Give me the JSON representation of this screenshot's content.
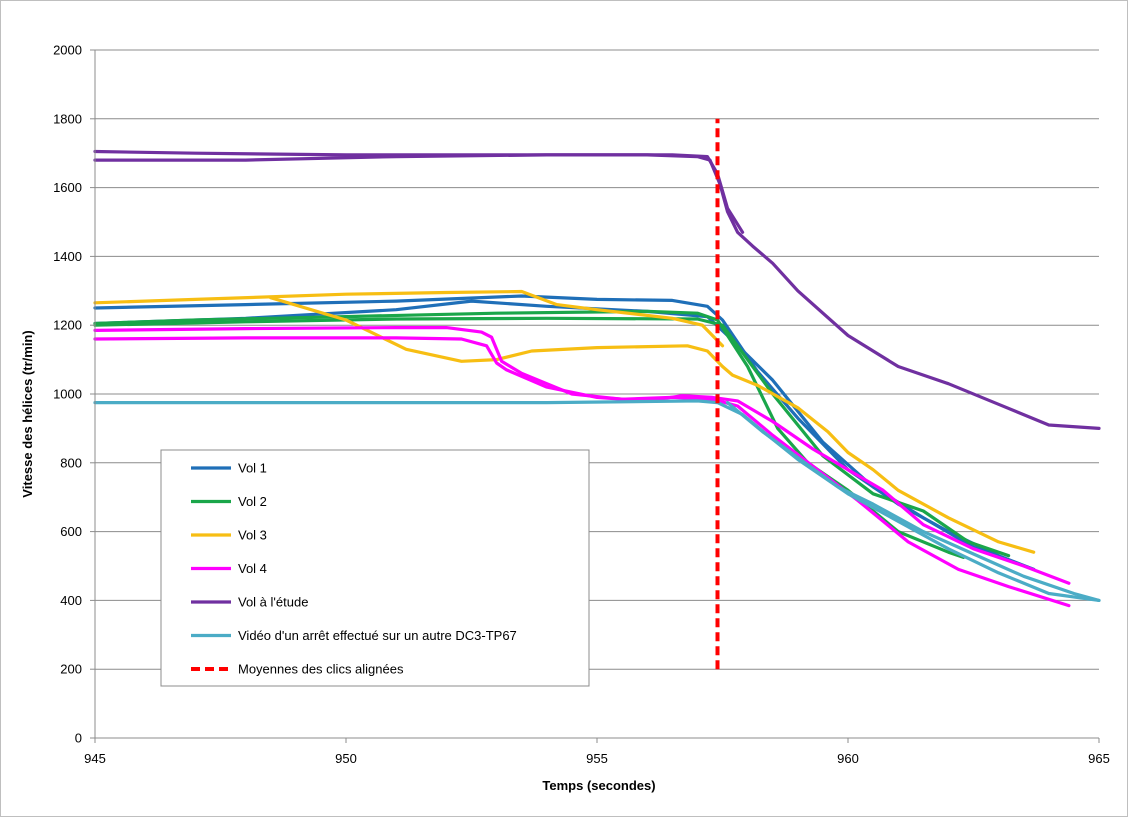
{
  "chart_data": {
    "type": "line",
    "title": "",
    "xlabel": "Temps (secondes)",
    "ylabel": "Vitesse des hélices (tr/min)",
    "xlim": [
      945,
      965
    ],
    "ylim": [
      0,
      2000
    ],
    "xticks": [
      "945",
      "950",
      "955",
      "960",
      "965"
    ],
    "yticks": [
      "0",
      "200",
      "400",
      "600",
      "800",
      "1000",
      "1200",
      "1400",
      "1600",
      "1800",
      "2000"
    ],
    "grid": "horizontal",
    "legend_position": "bottom-left",
    "series": [
      {
        "name": "Vol 1",
        "color": "#1f6fb8",
        "lines": [
          [
            [
              945,
              1250
            ],
            [
              948,
              1260
            ],
            [
              951,
              1270
            ],
            [
              953.5,
              1285
            ],
            [
              955,
              1275
            ],
            [
              956.5,
              1272
            ],
            [
              957.2,
              1255
            ],
            [
              957.5,
              1215
            ],
            [
              958.2,
              1065
            ],
            [
              959,
              930
            ],
            [
              960,
              780
            ],
            [
              961,
              680
            ],
            [
              962,
              600
            ],
            [
              963,
              530
            ],
            [
              963.7,
              490
            ]
          ],
          [
            [
              945,
              1205
            ],
            [
              948,
              1220
            ],
            [
              951,
              1245
            ],
            [
              952.5,
              1270
            ],
            [
              954,
              1255
            ],
            [
              956,
              1240
            ],
            [
              957.2,
              1225
            ],
            [
              957.6,
              1170
            ],
            [
              958.5,
              1040
            ],
            [
              959.5,
              860
            ],
            [
              960.5,
              730
            ],
            [
              961.5,
              640
            ],
            [
              962.5,
              555
            ],
            [
              963.7,
              490
            ]
          ]
        ]
      },
      {
        "name": "Vol 2",
        "color": "#1aa64a",
        "lines": [
          [
            [
              945,
              1205
            ],
            [
              947,
              1215
            ],
            [
              950,
              1225
            ],
            [
              953,
              1235
            ],
            [
              956,
              1240
            ],
            [
              957,
              1235
            ],
            [
              957.4,
              1215
            ],
            [
              958,
              1080
            ],
            [
              958.6,
              900
            ],
            [
              959.2,
              800
            ],
            [
              960,
              720
            ],
            [
              961,
              600
            ],
            [
              962,
              540
            ],
            [
              962.3,
              525
            ]
          ],
          [
            [
              945,
              1200
            ],
            [
              948,
              1210
            ],
            [
              951,
              1218
            ],
            [
              954,
              1220
            ],
            [
              957,
              1218
            ],
            [
              957.5,
              1200
            ],
            [
              958.5,
              1000
            ],
            [
              959.5,
              820
            ],
            [
              960.5,
              710
            ],
            [
              961.5,
              660
            ],
            [
              962.4,
              570
            ],
            [
              963.2,
              530
            ]
          ]
        ]
      },
      {
        "name": "Vol 3",
        "color": "#f7be13",
        "lines": [
          [
            [
              945,
              1265
            ],
            [
              947,
              1275
            ],
            [
              950,
              1290
            ],
            [
              952,
              1295
            ],
            [
              953.5,
              1298
            ],
            [
              954.2,
              1260
            ],
            [
              955,
              1245
            ],
            [
              956.5,
              1220
            ],
            [
              957.1,
              1200
            ],
            [
              957.5,
              1140
            ]
          ],
          [
            [
              948.5,
              1280
            ],
            [
              950,
              1215
            ],
            [
              951.2,
              1130
            ],
            [
              952.3,
              1095
            ],
            [
              953,
              1100
            ],
            [
              953.7,
              1125
            ],
            [
              955,
              1135
            ],
            [
              956.8,
              1140
            ],
            [
              957.2,
              1125
            ],
            [
              957.5,
              1080
            ],
            [
              957.7,
              1055
            ],
            [
              958.2,
              1025
            ],
            [
              959,
              960
            ],
            [
              959.6,
              890
            ],
            [
              960,
              830
            ],
            [
              960.5,
              780
            ],
            [
              961,
              720
            ],
            [
              962,
              640
            ],
            [
              963,
              570
            ],
            [
              963.7,
              540
            ]
          ]
        ]
      },
      {
        "name": "Vol 4",
        "color": "#ff00ff",
        "lines": [
          [
            [
              945,
              1160
            ],
            [
              948,
              1163
            ],
            [
              951,
              1163
            ],
            [
              952.3,
              1160
            ],
            [
              952.8,
              1140
            ],
            [
              953,
              1090
            ],
            [
              953.2,
              1070
            ],
            [
              954,
              1020
            ],
            [
              955,
              990
            ],
            [
              956,
              980
            ],
            [
              956.7,
              995
            ],
            [
              957.3,
              990
            ],
            [
              957.8,
              980
            ],
            [
              958.5,
              920
            ],
            [
              959.3,
              840
            ],
            [
              960,
              780
            ],
            [
              960.7,
              720
            ],
            [
              961.5,
              620
            ],
            [
              962.5,
              550
            ],
            [
              963.5,
              500
            ],
            [
              964.4,
              450
            ]
          ],
          [
            [
              945,
              1185
            ],
            [
              948,
              1190
            ],
            [
              951,
              1193
            ],
            [
              952,
              1193
            ],
            [
              952.7,
              1180
            ],
            [
              952.9,
              1165
            ],
            [
              953.1,
              1095
            ],
            [
              953.5,
              1060
            ],
            [
              954.5,
              1000
            ],
            [
              955.5,
              985
            ],
            [
              956.5,
              990
            ],
            [
              957.3,
              985
            ],
            [
              957.8,
              965
            ],
            [
              958.5,
              880
            ],
            [
              959.3,
              790
            ],
            [
              960.2,
              690
            ],
            [
              961.2,
              570
            ],
            [
              962.2,
              490
            ],
            [
              963.2,
              440
            ],
            [
              964.4,
              385
            ]
          ]
        ]
      },
      {
        "name": "Vol à l'étude",
        "color": "#7030a0",
        "lines": [
          [
            [
              945,
              1705
            ],
            [
              947,
              1700
            ],
            [
              950,
              1695
            ],
            [
              953,
              1695
            ],
            [
              956,
              1695
            ],
            [
              957,
              1690
            ],
            [
              957.25,
              1680
            ],
            [
              957.45,
              1610
            ],
            [
              957.6,
              1530
            ],
            [
              957.8,
              1470
            ],
            [
              958.1,
              1430
            ],
            [
              958.5,
              1380
            ],
            [
              959,
              1300
            ],
            [
              960,
              1170
            ],
            [
              961,
              1080
            ],
            [
              962,
              1030
            ],
            [
              963,
              970
            ],
            [
              964,
              910
            ],
            [
              965,
              900
            ]
          ],
          [
            [
              945,
              1680
            ],
            [
              948,
              1680
            ],
            [
              951,
              1690
            ],
            [
              954,
              1695
            ],
            [
              956.5,
              1695
            ],
            [
              957.2,
              1690
            ],
            [
              957.4,
              1640
            ],
            [
              957.6,
              1540
            ],
            [
              957.9,
              1470
            ]
          ]
        ]
      },
      {
        "name": "Vidéo d'un arrêt effectué sur un autre DC3-TP67",
        "color": "#4bacc6",
        "lines": [
          [
            [
              945,
              975
            ],
            [
              950,
              975
            ],
            [
              954,
              975
            ],
            [
              957,
              980
            ],
            [
              957.4,
              975
            ],
            [
              957.9,
              940
            ],
            [
              958.4,
              880
            ],
            [
              959,
              810
            ],
            [
              960,
              710
            ],
            [
              961,
              630
            ],
            [
              962,
              550
            ],
            [
              963,
              480
            ],
            [
              964,
              420
            ],
            [
              965,
              400
            ]
          ],
          [
            [
              957.6,
              975
            ],
            [
              958.3,
              890
            ],
            [
              959,
              815
            ],
            [
              959.8,
              730
            ],
            [
              960.5,
              680
            ],
            [
              961.5,
              600
            ],
            [
              962.5,
              535
            ],
            [
              963.5,
              470
            ],
            [
              964.5,
              420
            ],
            [
              965,
              400
            ]
          ]
        ]
      },
      {
        "name": "Moyennes des clics alignées",
        "color": "#ff0000",
        "dashed": true,
        "lines": [
          [
            [
              957.4,
              200
            ],
            [
              957.4,
              1800
            ]
          ]
        ]
      }
    ]
  }
}
